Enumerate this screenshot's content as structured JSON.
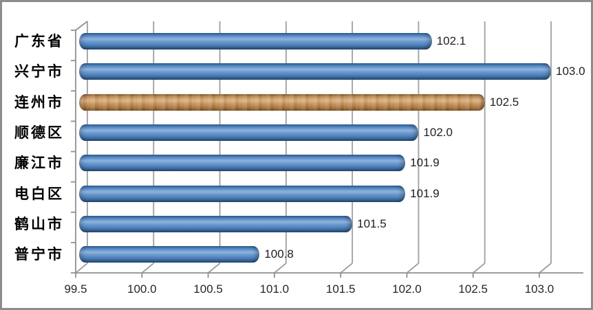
{
  "chart_data": {
    "type": "bar",
    "orientation": "horizontal",
    "style": "3d-cylinder",
    "title": "",
    "xlabel": "",
    "ylabel": "",
    "legend": "none",
    "grid": "vertical",
    "categories": [
      "广东省",
      "兴宁市",
      "连州市",
      "顺德区",
      "廉江市",
      "电白区",
      "鹤山市",
      "普宁市"
    ],
    "values": [
      102.1,
      103.0,
      102.5,
      102.0,
      101.9,
      101.9,
      101.5,
      100.8
    ],
    "value_labels": [
      "102.1",
      "103.0",
      "102.5",
      "102.0",
      "101.9",
      "101.9",
      "101.5",
      "100.8"
    ],
    "highlight_index": 2,
    "xlim": [
      99.5,
      103.0
    ],
    "x_ticks": [
      99.5,
      100.0,
      100.5,
      101.0,
      101.5,
      102.0,
      102.5,
      103.0
    ],
    "x_tick_labels": [
      "99.5",
      "100.0",
      "100.5",
      "101.0",
      "101.5",
      "102.0",
      "102.5",
      "103.0"
    ]
  },
  "colors": {
    "bar_default": "#4f81bd",
    "bar_highlight": "#c68f58",
    "gridline": "#9e9e9e",
    "axis": "#8f8f8f",
    "frame_border": "#8c8c8c",
    "text": "#1f1f1f",
    "background": "#ffffff"
  }
}
